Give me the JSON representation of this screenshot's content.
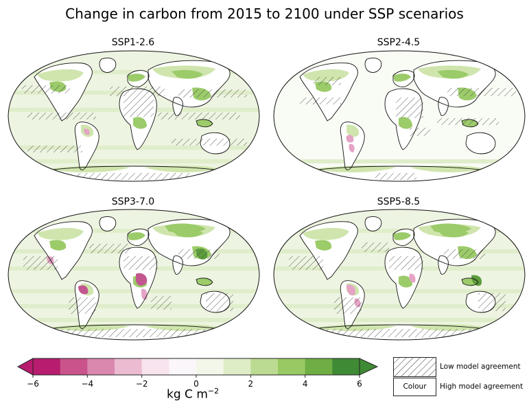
{
  "title": "Change in carbon from 2015 to 2100 under SSP scenarios",
  "panels": [
    {
      "label": "SSP1-2.6"
    },
    {
      "label": "SSP2-4.5"
    },
    {
      "label": "SSP3-7.0"
    },
    {
      "label": "SSP5-8.5"
    }
  ],
  "colorbar": {
    "ticks": [
      "−6",
      "−4",
      "−2",
      "0",
      "2",
      "4",
      "6"
    ],
    "unit_base": "kg C m",
    "unit_exp": "−2",
    "min": -6,
    "max": 6,
    "colors": [
      "#b71c6e",
      "#c9538a",
      "#da88ae",
      "#ebbbd2",
      "#f8e4ee",
      "#fbf6f9",
      "#f3f7ea",
      "#dfedc6",
      "#bcdb92",
      "#98c963",
      "#6fae45",
      "#3f8a35"
    ]
  },
  "legend": {
    "hatch_label": "Low model agreement",
    "colour_box": "Colour",
    "colour_label": "High model agreement"
  },
  "colors": {
    "ocean": "#edf4e1",
    "land": "#ffffff",
    "light_green": "#cfe5ad",
    "mid_green": "#9ccb6a",
    "dark_green": "#5c9c3c",
    "pink": "#e5a3c5",
    "magenta": "#c25790"
  }
}
